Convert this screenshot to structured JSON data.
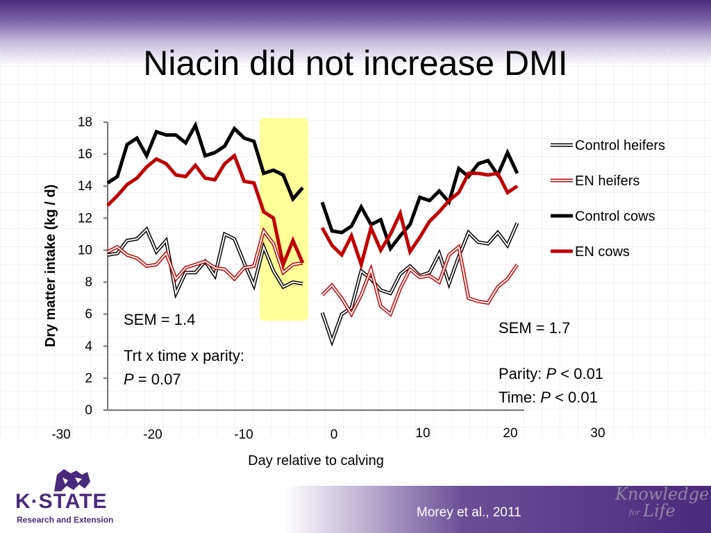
{
  "title": "Niacin did not increase DMI",
  "colors": {
    "purple": "#4a2a7c",
    "highlight": "#ffff99",
    "red": "#c00000",
    "black": "#000000"
  },
  "chart_data": {
    "type": "line",
    "ylabel": "Dry matter intake (kg / d)",
    "xlabel": "Day relative to calving",
    "ylim": [
      0,
      18
    ],
    "xlim": [
      -30,
      30
    ],
    "yticks": [
      "0",
      "2",
      "4",
      "6",
      "8",
      "10",
      "12",
      "14",
      "16",
      "18"
    ],
    "xticks": [
      "-30",
      "-20",
      "-10",
      "0",
      "10",
      "20",
      "30"
    ],
    "highlight_range": [
      -5,
      -1
    ],
    "legend_position": "right",
    "series": [
      {
        "name": "Control heifers",
        "style": "hollow",
        "color": "#000000",
        "pre": {
          "x": [
            -21,
            -20,
            -19,
            -18,
            -17,
            -16,
            -15,
            -14,
            -13,
            -12,
            -11,
            -10,
            -9,
            -8,
            -7,
            -6,
            -5,
            -4,
            -3,
            -2,
            -1
          ],
          "y": [
            9.7,
            9.8,
            10.6,
            10.7,
            11.3,
            9.9,
            10.6,
            7.3,
            8.6,
            8.6,
            9.3,
            8.4,
            11.0,
            10.7,
            9.2,
            7.8,
            10.2,
            8.7,
            7.7,
            8.0,
            7.9
          ]
        },
        "post": {
          "x": [
            1,
            2,
            3,
            4,
            5,
            6,
            7,
            8,
            9,
            10,
            11,
            12,
            13,
            14,
            15,
            16,
            17,
            18,
            19,
            20,
            21
          ],
          "y": [
            6.1,
            4.3,
            6.0,
            6.4,
            8.7,
            8.2,
            7.5,
            7.3,
            8.5,
            9.0,
            8.4,
            8.6,
            9.8,
            7.9,
            9.6,
            11.1,
            10.5,
            10.4,
            11.1,
            10.3,
            11.7
          ]
        }
      },
      {
        "name": "EN heifers",
        "style": "hollow",
        "color": "#c00000",
        "pre": {
          "x": [
            -21,
            -20,
            -19,
            -18,
            -17,
            -16,
            -15,
            -14,
            -13,
            -12,
            -11,
            -10,
            -9,
            -8,
            -7,
            -6,
            -5,
            -4,
            -3,
            -2,
            -1
          ],
          "y": [
            9.9,
            10.2,
            9.7,
            9.5,
            9.0,
            9.1,
            9.8,
            8.2,
            8.9,
            9.1,
            9.3,
            8.9,
            8.8,
            8.2,
            8.9,
            9.0,
            11.2,
            10.4,
            8.6,
            9.1,
            9.2
          ]
        },
        "post": {
          "x": [
            1,
            2,
            3,
            4,
            5,
            6,
            7,
            8,
            9,
            10,
            11,
            12,
            13,
            14,
            15,
            16,
            17,
            18,
            19,
            20,
            21
          ],
          "y": [
            7.2,
            7.8,
            7.0,
            6.0,
            7.2,
            8.8,
            6.5,
            6.0,
            7.6,
            8.8,
            8.3,
            8.4,
            8.0,
            9.7,
            10.2,
            7.0,
            6.8,
            6.7,
            7.7,
            8.2,
            9.1
          ]
        }
      },
      {
        "name": "Control cows",
        "style": "solid",
        "color": "#000000",
        "pre": {
          "x": [
            -21,
            -20,
            -19,
            -18,
            -17,
            -16,
            -15,
            -14,
            -13,
            -12,
            -11,
            -10,
            -9,
            -8,
            -7,
            -6,
            -5,
            -4,
            -3,
            -2,
            -1
          ],
          "y": [
            14.2,
            14.6,
            16.6,
            17.0,
            15.9,
            17.4,
            17.2,
            17.2,
            16.7,
            17.8,
            15.9,
            16.1,
            16.5,
            17.6,
            17.0,
            16.8,
            14.8,
            15.0,
            14.7,
            13.2,
            13.9
          ]
        },
        "post": {
          "x": [
            1,
            2,
            3,
            4,
            5,
            6,
            7,
            8,
            9,
            10,
            11,
            12,
            13,
            14,
            15,
            16,
            17,
            18,
            19,
            20,
            21
          ],
          "y": [
            13.0,
            11.2,
            11.1,
            11.5,
            12.7,
            11.6,
            11.9,
            10.1,
            10.9,
            11.6,
            13.3,
            13.1,
            13.7,
            13.0,
            15.1,
            14.6,
            15.4,
            15.6,
            14.7,
            16.1,
            14.8
          ]
        }
      },
      {
        "name": "EN cows",
        "style": "solid",
        "color": "#c00000",
        "pre": {
          "x": [
            -21,
            -20,
            -19,
            -18,
            -17,
            -16,
            -15,
            -14,
            -13,
            -12,
            -11,
            -10,
            -9,
            -8,
            -7,
            -6,
            -5,
            -4,
            -3,
            -2,
            -1
          ],
          "y": [
            12.8,
            13.4,
            14.1,
            14.5,
            15.2,
            15.7,
            15.4,
            14.7,
            14.6,
            15.3,
            14.5,
            14.4,
            15.4,
            15.9,
            14.3,
            14.2,
            12.4,
            12.0,
            9.1,
            10.6,
            9.2
          ]
        },
        "post": {
          "x": [
            1,
            2,
            3,
            4,
            5,
            6,
            7,
            8,
            9,
            10,
            11,
            12,
            13,
            14,
            15,
            16,
            17,
            18,
            19,
            20,
            21
          ],
          "y": [
            11.4,
            10.3,
            9.7,
            10.9,
            9.1,
            11.4,
            10.0,
            11.0,
            12.3,
            9.9,
            10.8,
            11.8,
            12.4,
            13.1,
            13.6,
            14.8,
            14.8,
            14.7,
            14.8,
            13.6,
            14.0
          ]
        }
      }
    ]
  },
  "annotations": {
    "left": {
      "sem": "SEM = 1.4",
      "trt_label": "Trt x time x parity:",
      "p_sym": "P",
      "p_val": " = 0.07"
    },
    "right": {
      "sem": "SEM = 1.7",
      "parity_label": "Parity: ",
      "parity_p": "P",
      "parity_val": " < 0.01",
      "time_label": "Time: ",
      "time_p": "P",
      "time_val": " < 0.01"
    }
  },
  "logo": {
    "brand": "K·STATE",
    "sub": "Research and Extension"
  },
  "citation": "Morey et al.,  2011",
  "tagline": {
    "line1": "Knowledge",
    "line2a": "for",
    "line2b": "Life"
  }
}
